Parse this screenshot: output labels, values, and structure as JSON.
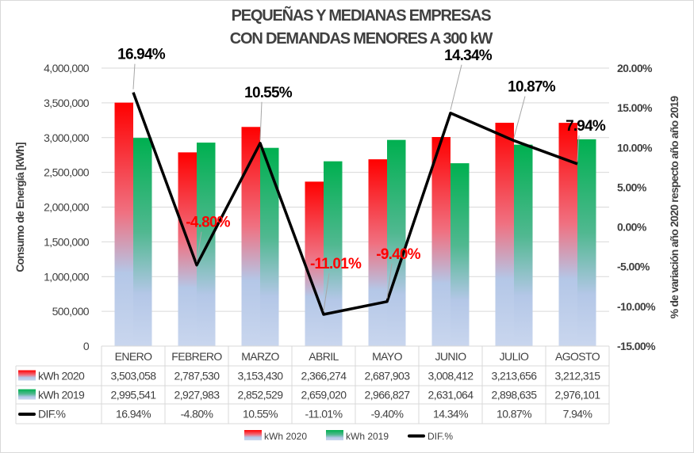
{
  "chart_data": {
    "type": "bar+line",
    "title": [
      "PEQUEÑAS Y MEDIANAS EMPRESAS",
      "CON DEMANDAS MENORES A 300 kW"
    ],
    "ylabel": "Consumo de Energía [kWh]",
    "y2label": "% de variación año 2020 respecto año año 2019",
    "ylim": [
      0,
      4000000
    ],
    "y2lim": [
      -15,
      20
    ],
    "yticks": [
      "0",
      "500,000",
      "1,000,000",
      "1,500,000",
      "2,000,000",
      "2,500,000",
      "3,000,000",
      "3,500,000",
      "4,000,000"
    ],
    "y2ticks": [
      "-15.00%",
      "-10.00%",
      "-5.00%",
      "0.00%",
      "5.00%",
      "10.00%",
      "15.00%",
      "20.00%"
    ],
    "grid": true,
    "legend_placement": "bottom",
    "categories": [
      "ENERO",
      "FEBRERO",
      "MARZO",
      "ABRIL",
      "MAYO",
      "JUNIO",
      "JULIO",
      "AGOSTO"
    ],
    "series": [
      {
        "name": "kWh  2020",
        "type": "bar",
        "color": "#ff0000",
        "values": [
          3503058,
          2787530,
          3153430,
          2366274,
          2687903,
          3008412,
          3213656,
          3212315
        ],
        "labels": [
          "3,503,058",
          "2,787,530",
          "3,153,430",
          "2,366,274",
          "2,687,903",
          "3,008,412",
          "3,213,656",
          "3,212,315"
        ]
      },
      {
        "name": "kWh  2019",
        "type": "bar",
        "color": "#00b050",
        "values": [
          2995541,
          2927983,
          2852529,
          2659020,
          2966827,
          2631064,
          2898635,
          2976101
        ],
        "labels": [
          "2,995,541",
          "2,927,983",
          "2,852,529",
          "2,659,020",
          "2,966,827",
          "2,631,064",
          "2,898,635",
          "2,976,101"
        ]
      },
      {
        "name": "DIF.%",
        "type": "line",
        "axis": "secondary",
        "color": "#000000",
        "values": [
          16.94,
          -4.8,
          10.55,
          -11.01,
          -9.4,
          14.34,
          10.87,
          7.94
        ],
        "labels": [
          "16.94%",
          "-4.80%",
          "10.55%",
          "-11.01%",
          "-9.40%",
          "14.34%",
          "10.87%",
          "7.94%"
        ]
      }
    ],
    "negative_label_color": "#ff0000",
    "gradient_bottom_color": "#b4c7e7"
  }
}
